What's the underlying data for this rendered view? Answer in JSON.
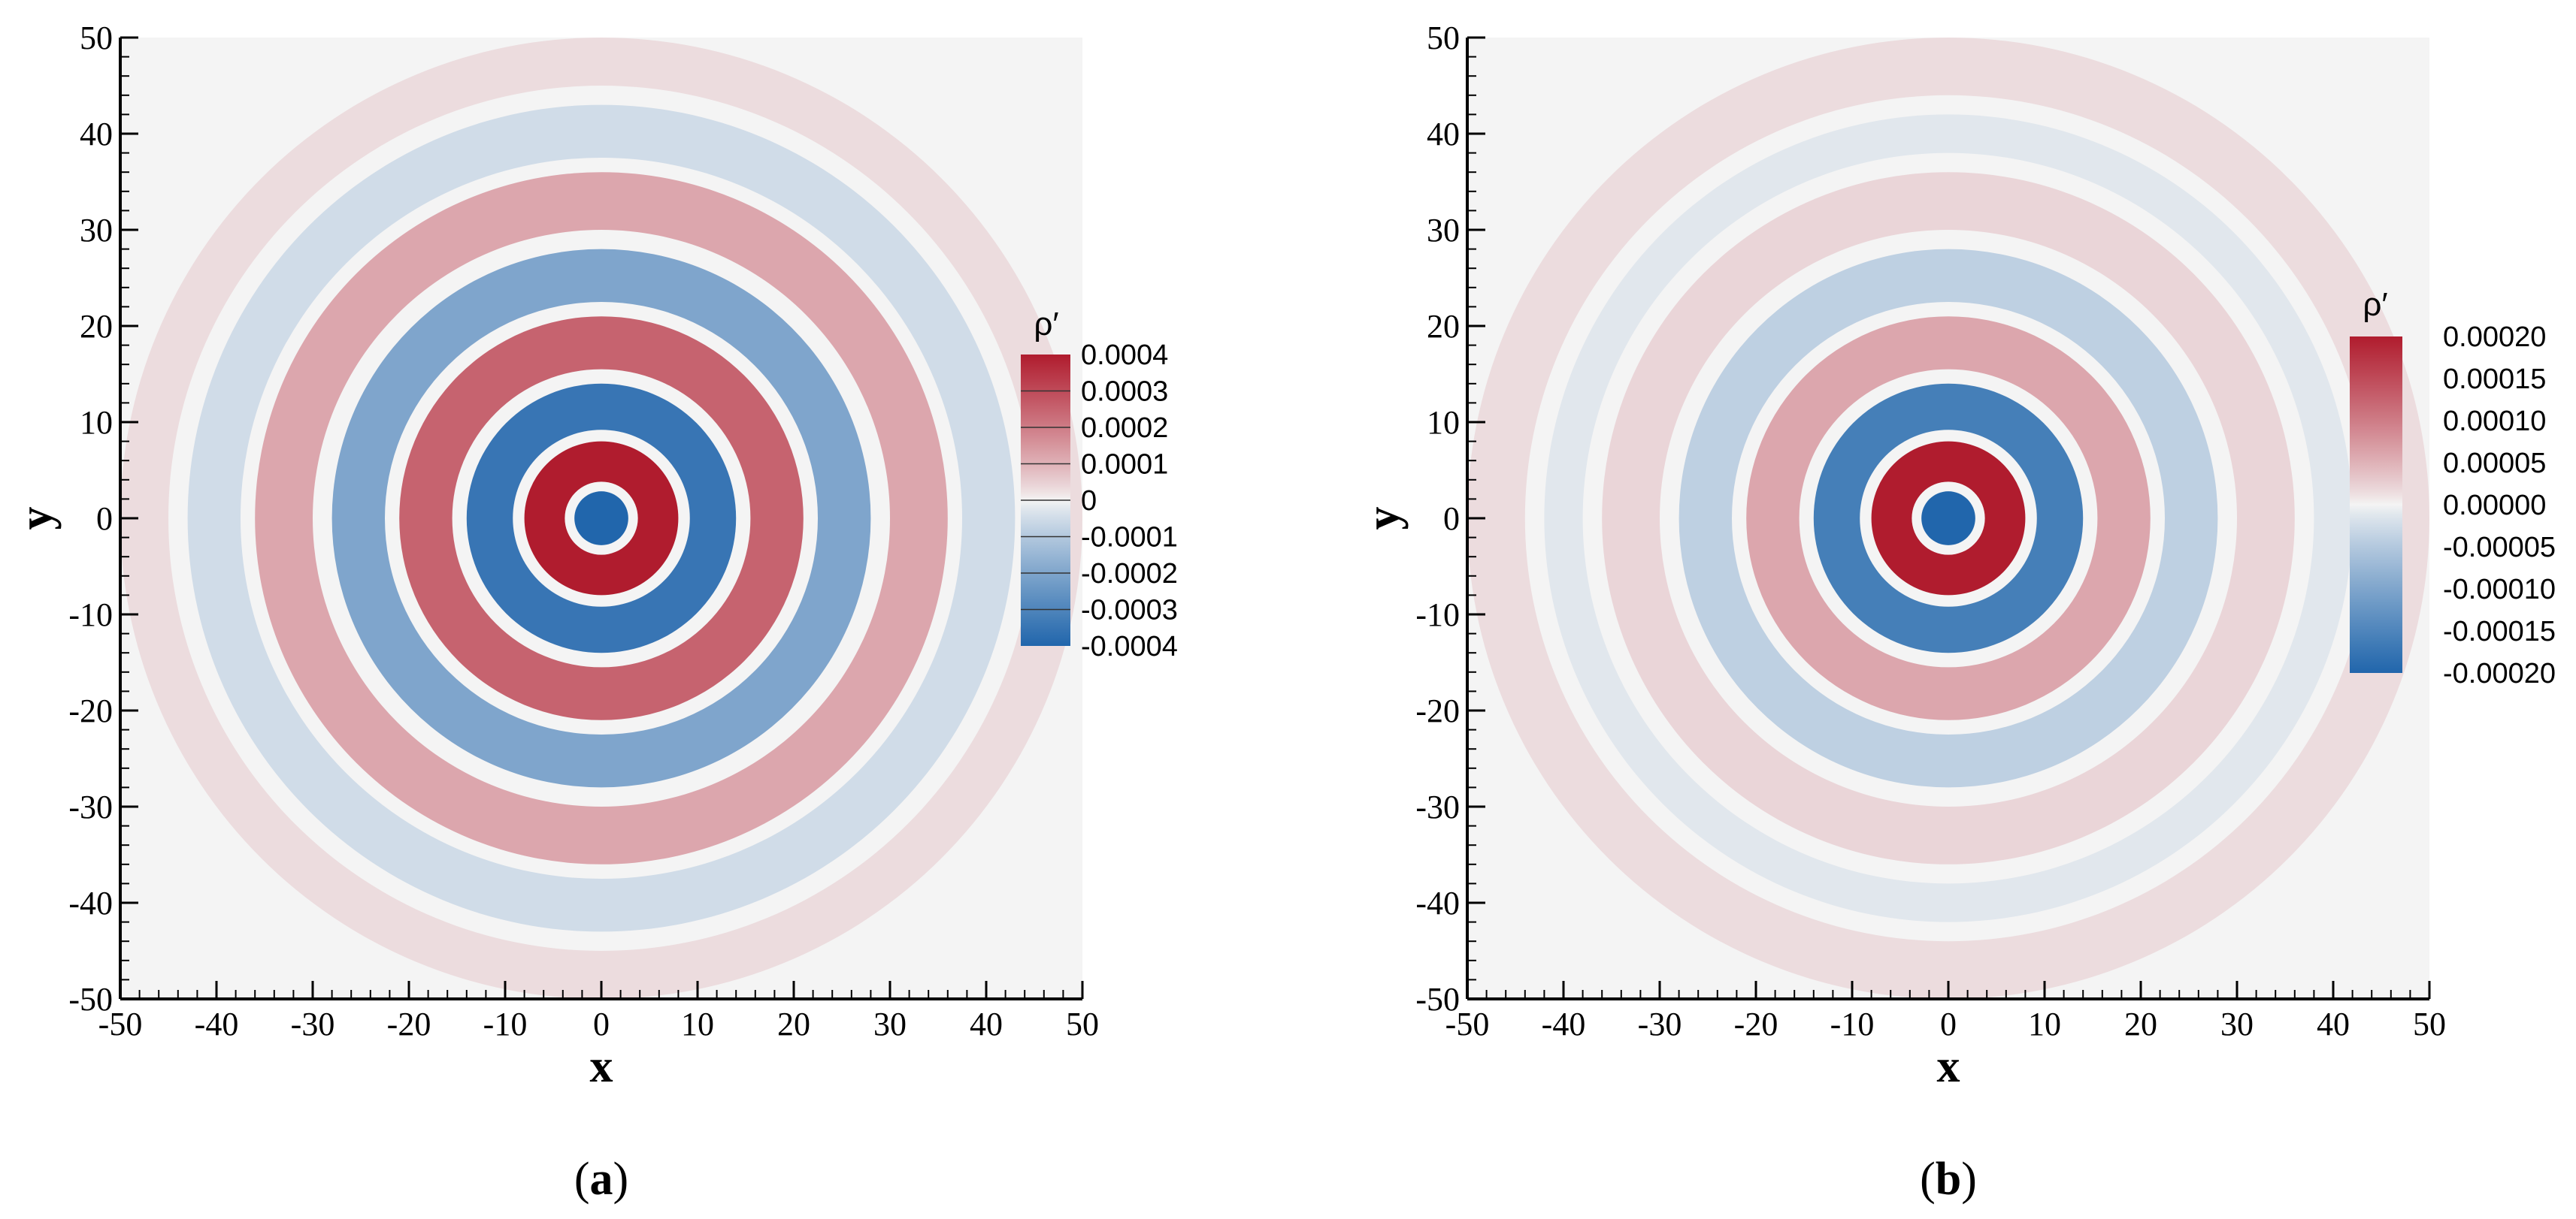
{
  "chart_data": [
    {
      "type": "heatmap",
      "panel_label": "(a)",
      "panel_label_parts": {
        "open": "(",
        "letter": "a",
        "close": ")"
      },
      "xlabel": "x",
      "ylabel": "y",
      "xlim": [
        -50,
        50
      ],
      "ylim": [
        -50,
        50
      ],
      "xticks": [
        "-50",
        "-40",
        "-30",
        "-20",
        "-10",
        "0",
        "10",
        "20",
        "30",
        "40",
        "50"
      ],
      "yticks": [
        "50",
        "40",
        "30",
        "20",
        "10",
        "0",
        "-10",
        "-20",
        "-30",
        "-40",
        "-50"
      ],
      "colorbar": {
        "title": "ρ′",
        "range": [
          -0.0004,
          0.0004
        ],
        "labels": [
          "0.0004",
          "0.0003",
          "0.0002",
          "0.0001",
          "0",
          "-0.0001",
          "-0.0002",
          "-0.0003",
          "-0.0004"
        ]
      },
      "rings": [
        {
          "r": [
            0,
            2.8
          ],
          "value": -0.0004
        },
        {
          "r": [
            2.8,
            3.8
          ],
          "value": 0.0
        },
        {
          "r": [
            3.8,
            8.0
          ],
          "value": 0.0004
        },
        {
          "r": [
            8.0,
            9.2
          ],
          "value": 0.0
        },
        {
          "r": [
            9.2,
            14.0
          ],
          "value": -0.00035
        },
        {
          "r": [
            14.0,
            15.5
          ],
          "value": 0.0
        },
        {
          "r": [
            15.5,
            21.0
          ],
          "value": 0.00025
        },
        {
          "r": [
            21.0,
            22.5
          ],
          "value": 0.0
        },
        {
          "r": [
            22.5,
            28.0
          ],
          "value": -0.0002
        },
        {
          "r": [
            28.0,
            30.0
          ],
          "value": 0.0
        },
        {
          "r": [
            30.0,
            36.0
          ],
          "value": 0.00012
        },
        {
          "r": [
            36.0,
            37.5
          ],
          "value": 0.0
        },
        {
          "r": [
            37.5,
            43.0
          ],
          "value": -5e-05
        },
        {
          "r": [
            43.0,
            45.0
          ],
          "value": 0.0
        },
        {
          "r": [
            45.0,
            50.0
          ],
          "value": 3e-05
        }
      ],
      "colors": {
        "positive_max": "#b01c2e",
        "zero": "#f4f4f4",
        "negative_max": "#2166ac"
      }
    },
    {
      "type": "heatmap",
      "panel_label": "(b)",
      "panel_label_parts": {
        "open": "(",
        "letter": "b",
        "close": ")"
      },
      "xlabel": "x",
      "ylabel": "y",
      "xlim": [
        -50,
        50
      ],
      "ylim": [
        -50,
        50
      ],
      "xticks": [
        "-50",
        "-40",
        "-30",
        "-20",
        "-10",
        "0",
        "10",
        "20",
        "30",
        "40",
        "50"
      ],
      "yticks": [
        "50",
        "40",
        "30",
        "20",
        "10",
        "0",
        "-10",
        "-20",
        "-30",
        "-40",
        "-50"
      ],
      "colorbar": {
        "title": "ρ′",
        "range": [
          -0.0002,
          0.0002
        ],
        "labels": [
          "0.00020",
          "0.00015",
          "0.00010",
          "0.00005",
          "0.00000",
          "-0.00005",
          "-0.00010",
          "-0.00015",
          "-0.00020"
        ]
      },
      "rings": [
        {
          "r": [
            0,
            2.8
          ],
          "value": -0.0002
        },
        {
          "r": [
            2.8,
            3.8
          ],
          "value": 0.0
        },
        {
          "r": [
            3.8,
            8.0
          ],
          "value": 0.0002
        },
        {
          "r": [
            8.0,
            9.2
          ],
          "value": 0.0
        },
        {
          "r": [
            9.2,
            14.0
          ],
          "value": -0.00016
        },
        {
          "r": [
            14.0,
            15.5
          ],
          "value": 0.0
        },
        {
          "r": [
            15.5,
            21.0
          ],
          "value": 6e-05
        },
        {
          "r": [
            21.0,
            22.5
          ],
          "value": 0.0
        },
        {
          "r": [
            22.5,
            28.0
          ],
          "value": -4e-05
        },
        {
          "r": [
            28.0,
            30.0
          ],
          "value": 0.0
        },
        {
          "r": [
            30.0,
            36.0
          ],
          "value": 2e-05
        },
        {
          "r": [
            36.0,
            38.0
          ],
          "value": 0.0
        },
        {
          "r": [
            38.0,
            42.0
          ],
          "value": -1.2e-05
        },
        {
          "r": [
            42.0,
            44.0
          ],
          "value": 0.0
        },
        {
          "r": [
            44.0,
            50.0
          ],
          "value": 1.5e-05
        }
      ],
      "colors": {
        "positive_max": "#b01c2e",
        "zero": "#f4f4f4",
        "negative_max": "#2166ac"
      }
    }
  ]
}
